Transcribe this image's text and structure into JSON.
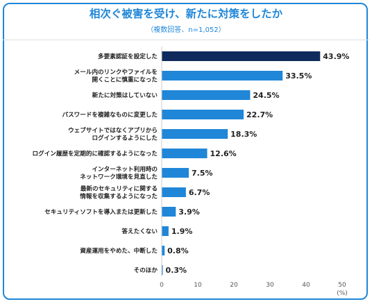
{
  "chart_data": {
    "type": "bar",
    "orientation": "horizontal",
    "title": "相次ぐ被害を受け、新たに対策をしたか",
    "subtitle": "（複数回答、n=1,052）",
    "categories": [
      [
        "多要素認証を設定した"
      ],
      [
        "メール内のリンクやファイルを",
        "開くことに慎重になった"
      ],
      [
        "新たに対策はしていない"
      ],
      [
        "パスワードを複雑なものに変更した"
      ],
      [
        "ウェブサイトではなくアプリから",
        "ログインするようにした"
      ],
      [
        "ログイン履歴を定期的に確認するようになった"
      ],
      [
        "インターネット利用時の",
        "ネットワーク環境を見直した"
      ],
      [
        "最新のセキュリティに関する",
        "情報を収集するようになった"
      ],
      [
        "セキュリティソフトを導入または更新した"
      ],
      [
        "答えたくない"
      ],
      [
        "資産運用をやめた、中断した"
      ],
      [
        "そのほか"
      ]
    ],
    "values": [
      43.9,
      33.5,
      24.5,
      22.7,
      18.3,
      12.6,
      7.5,
      6.7,
      3.9,
      1.9,
      0.8,
      0.3
    ],
    "value_labels": [
      "43.9%",
      "33.5%",
      "24.5%",
      "22.7%",
      "18.3%",
      "12.6%",
      "7.5%",
      "6.7%",
      "3.9%",
      "1.9%",
      "0.8%",
      "0.3%"
    ],
    "highlight_index": 0,
    "xlim": [
      0,
      50
    ],
    "xticks": [
      "0",
      "10",
      "20",
      "30",
      "40",
      "50"
    ],
    "xunit": "(%)",
    "grid": false,
    "colors": {
      "highlight": "#0f2a5c",
      "bar": "#1f86d8",
      "title": "#1f86d8",
      "border": "#1f86d8"
    }
  }
}
